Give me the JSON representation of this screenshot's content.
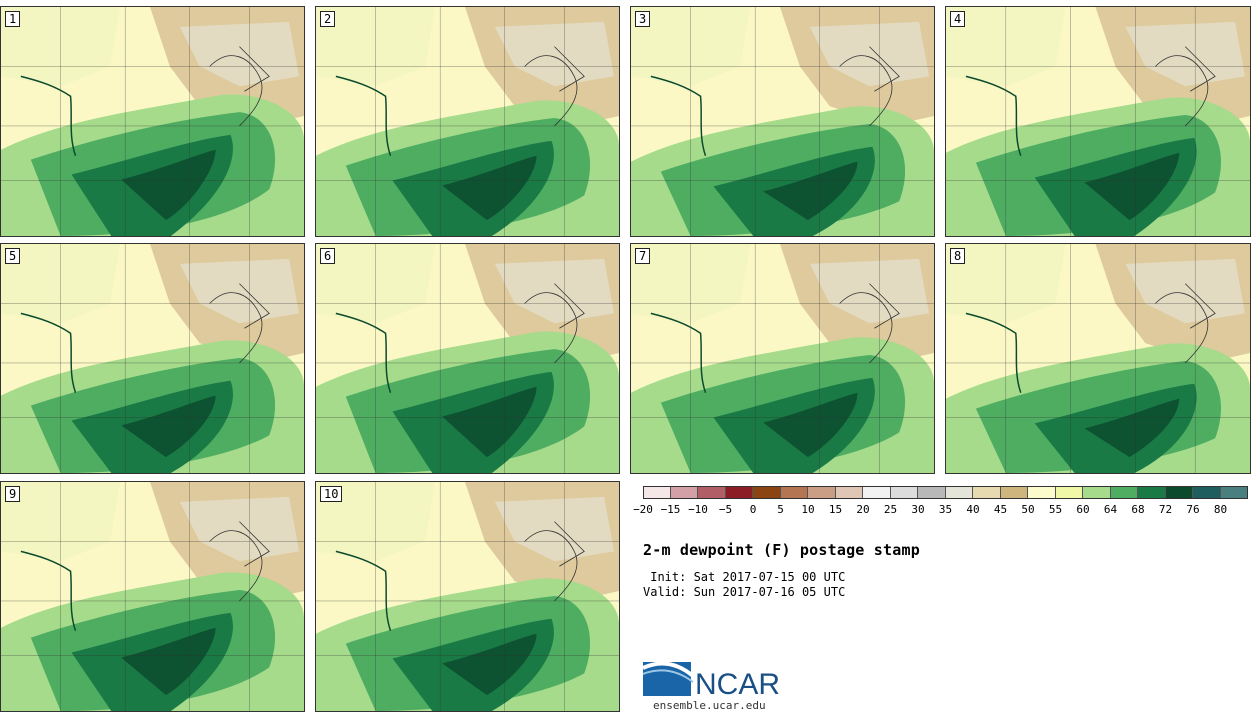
{
  "panels": [
    {
      "label": "1"
    },
    {
      "label": "2"
    },
    {
      "label": "3"
    },
    {
      "label": "4"
    },
    {
      "label": "5"
    },
    {
      "label": "6"
    },
    {
      "label": "7"
    },
    {
      "label": "8"
    },
    {
      "label": "9"
    },
    {
      "label": "10"
    }
  ],
  "colorbar": {
    "colors": [
      "#f5e6e8",
      "#d4a0a7",
      "#b25e66",
      "#8c1d26",
      "#8b4513",
      "#b37552",
      "#c99e84",
      "#e0c7b5",
      "#f2f2f2",
      "#dcdcdc",
      "#b8b8b8",
      "#e4e4d8",
      "#e7dab0",
      "#cdb57d",
      "#fbfbcc",
      "#f0f8a8",
      "#a6db8c",
      "#4fad62",
      "#1a7a45",
      "#0b4a2c",
      "#1f5e5e",
      "#4a7f80"
    ],
    "tick_labels": [
      "−20",
      "−15",
      "−10",
      "−5",
      "0",
      "5",
      "10",
      "15",
      "20",
      "25",
      "30",
      "35",
      "40",
      "45",
      "50",
      "55",
      "60",
      "64",
      "68",
      "72",
      "76",
      "80"
    ]
  },
  "title": "2-m dewpoint (F) postage stamp",
  "init_line": " Init: Sat 2017-07-15 00 UTC",
  "valid_line": "Valid: Sun 2017-07-16 05 UTC",
  "logo": {
    "text": "NCAR",
    "url": "ensemble.ucar.edu"
  }
}
